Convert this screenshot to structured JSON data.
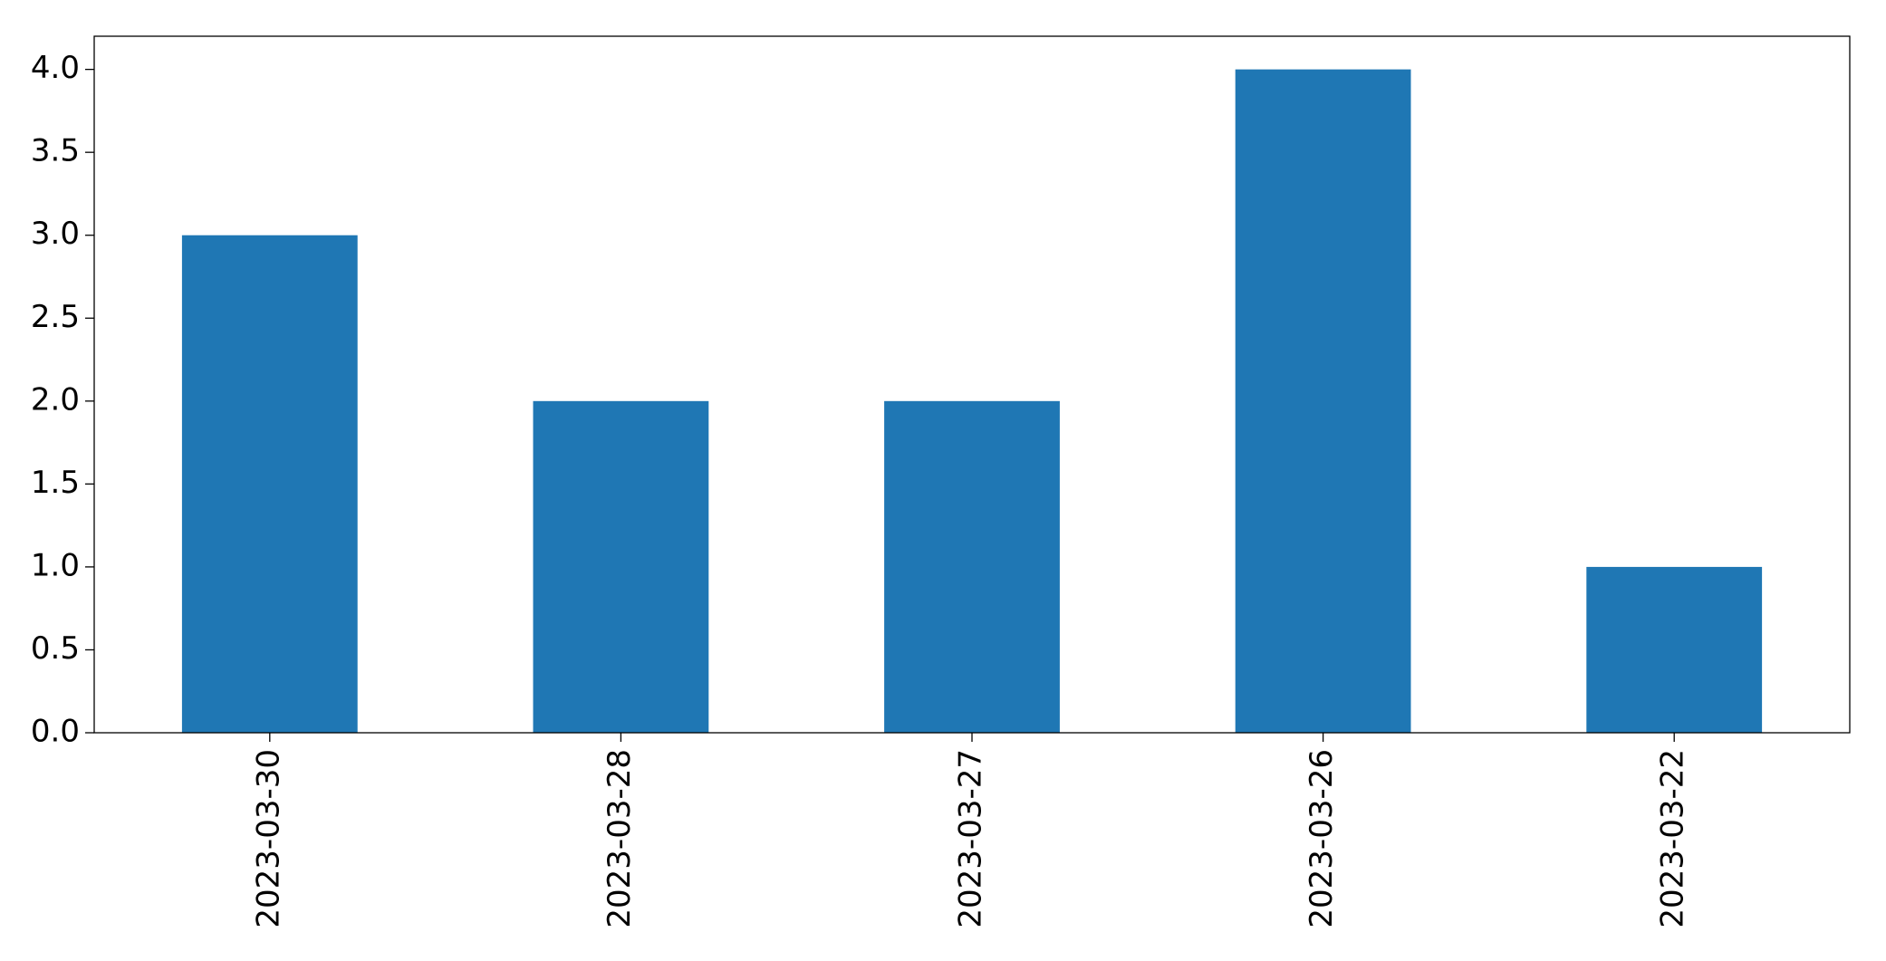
{
  "chart_data": {
    "type": "bar",
    "categories": [
      "2023-03-30",
      "2023-03-28",
      "2023-03-27",
      "2023-03-26",
      "2023-03-22"
    ],
    "values": [
      3,
      2,
      2,
      4,
      1
    ],
    "color": "#1f77b4",
    "ylim": [
      0,
      4.2
    ],
    "yticks": [
      {
        "value": 0,
        "label": "0.0"
      },
      {
        "value": 0.5,
        "label": "0.5"
      },
      {
        "value": 1,
        "label": "1.0"
      },
      {
        "value": 1.5,
        "label": "1.5"
      },
      {
        "value": 2,
        "label": "2.0"
      },
      {
        "value": 2.5,
        "label": "2.5"
      },
      {
        "value": 3,
        "label": "3.0"
      },
      {
        "value": 3.5,
        "label": "3.5"
      },
      {
        "value": 4,
        "label": "4.0"
      }
    ],
    "grid": false
  }
}
